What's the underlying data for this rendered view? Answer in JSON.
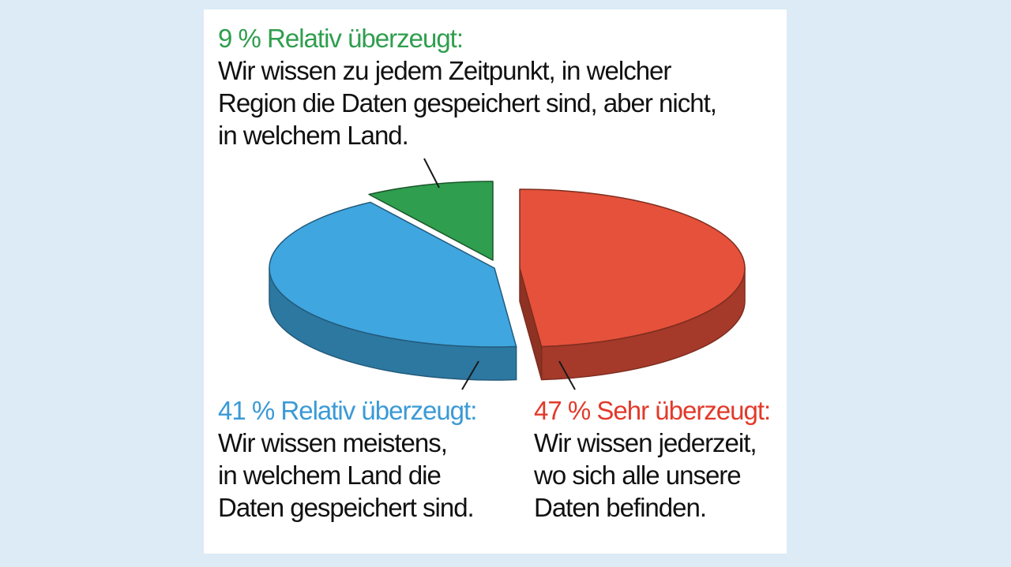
{
  "colors": {
    "background": "#dcebf6",
    "green": "#2f9e4e",
    "blue": "#3fa6e0",
    "red": "#e5513a"
  },
  "chart_data": {
    "type": "pie",
    "title": "",
    "three_d": true,
    "slices": [
      {
        "value": 9,
        "label": "9 % Relativ überzeugt:",
        "description": "Wir wissen zu jedem Zeitpunkt, in welcher\nRegion die Daten gespeichert sind, aber nicht,\nin welchem Land.",
        "color": "#2f9e4e"
      },
      {
        "value": 41,
        "label": "41 % Relativ überzeugt:",
        "description": "Wir wissen meistens,\nin welchem Land die\nDaten gespeichert sind.",
        "color": "#3fa6e0"
      },
      {
        "value": 47,
        "label": "47 % Sehr überzeugt:",
        "description": "Wir wissen jederzeit,\nwo sich alle unsere\nDaten befinden.",
        "color": "#e5513a"
      }
    ]
  }
}
